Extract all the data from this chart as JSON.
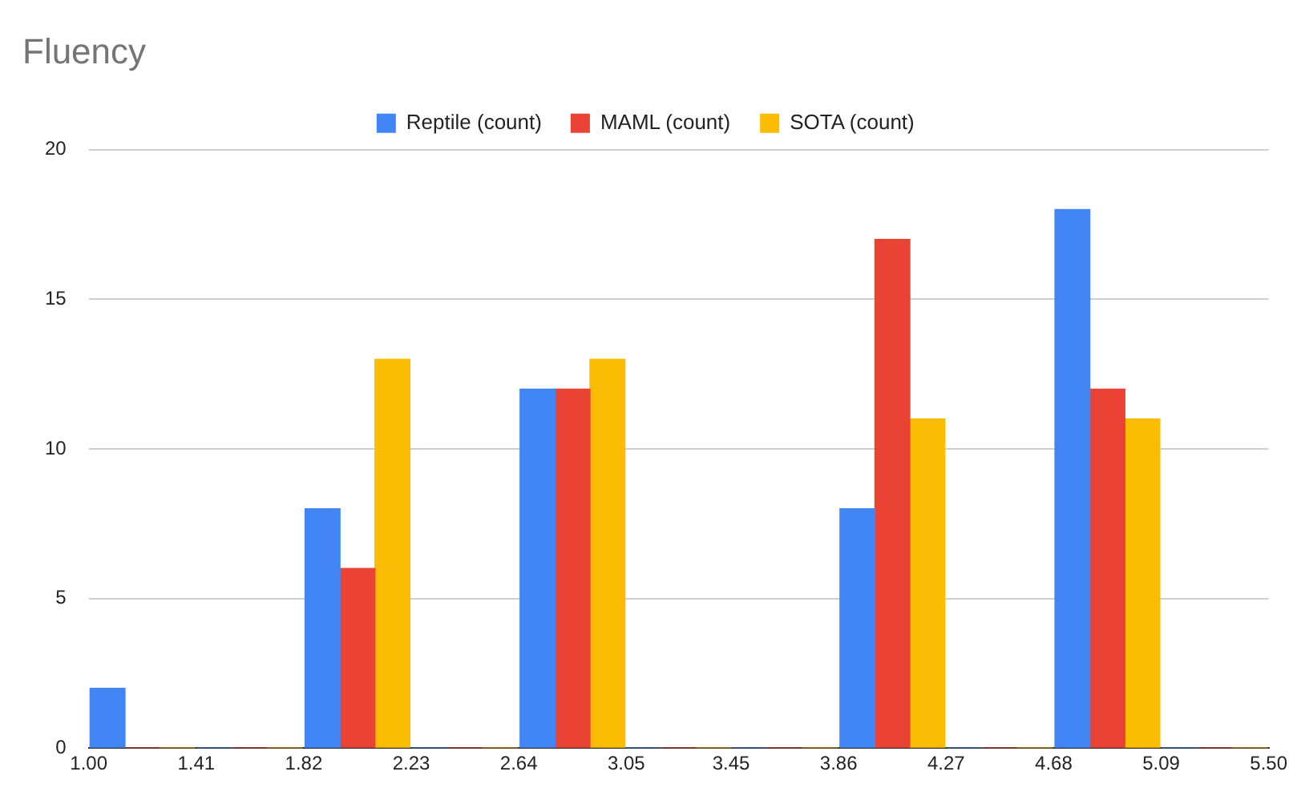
{
  "chart_data": {
    "type": "histogram",
    "title": "Fluency",
    "bins": [
      1.0,
      1.41,
      1.82,
      2.23,
      2.64,
      3.05,
      3.45,
      3.86,
      4.27,
      4.68,
      5.09,
      5.5
    ],
    "series": [
      {
        "name": "Reptile (count)",
        "color": "#4285f4",
        "values": [
          2,
          0,
          8,
          0,
          12,
          0,
          0,
          8,
          0,
          18,
          0
        ]
      },
      {
        "name": "MAML (count)",
        "color": "#ea4335",
        "values": [
          0,
          0,
          6,
          0,
          12,
          0,
          0,
          17,
          0,
          12,
          0
        ]
      },
      {
        "name": "SOTA (count)",
        "color": "#fbbc04",
        "values": [
          0,
          0,
          13,
          0,
          13,
          0,
          0,
          11,
          0,
          11,
          0
        ]
      }
    ],
    "xlim": [
      1.0,
      5.5
    ],
    "xticks": [
      {
        "value": 1.0,
        "label": "1.00"
      },
      {
        "value": 1.41,
        "label": "1.41"
      },
      {
        "value": 1.82,
        "label": "1.82"
      },
      {
        "value": 2.23,
        "label": "2.23"
      },
      {
        "value": 2.64,
        "label": "2.64"
      },
      {
        "value": 3.05,
        "label": "3.05"
      },
      {
        "value": 3.45,
        "label": "3.45"
      },
      {
        "value": 3.86,
        "label": "3.86"
      },
      {
        "value": 4.27,
        "label": "4.27"
      },
      {
        "value": 4.68,
        "label": "4.68"
      },
      {
        "value": 5.09,
        "label": "5.09"
      },
      {
        "value": 5.5,
        "label": "5.50"
      }
    ],
    "ylim": [
      0,
      20
    ],
    "yticks": [
      0,
      5,
      10,
      15,
      20
    ],
    "grid": "y",
    "legend": "top"
  }
}
